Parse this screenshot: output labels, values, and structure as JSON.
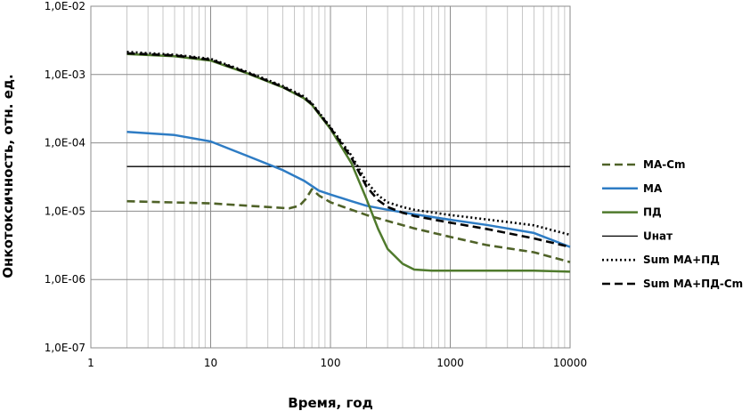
{
  "chart_data": {
    "type": "line",
    "title": "",
    "xlabel": "Время, год",
    "ylabel": "Онкотоксичность, отн. ед.",
    "xscale": "log",
    "yscale": "log",
    "xlim": [
      1,
      10000
    ],
    "ylim": [
      1e-07,
      0.01
    ],
    "x_tick_labels": [
      "1",
      "10",
      "100",
      "1000",
      "10000"
    ],
    "y_tick_labels": [
      "1,0E-07",
      "1,0E-06",
      "1,0E-05",
      "1,0E-04",
      "1,0E-03",
      "1,0E-02"
    ],
    "grid": true,
    "legend_position": "right",
    "series": [
      {
        "name": "MA-Cm",
        "color": "#4f6228",
        "style": "dashed",
        "x": [
          2,
          10,
          30,
          45,
          55,
          62,
          70,
          80,
          100,
          150,
          200,
          300,
          500,
          1000,
          2000,
          5000,
          10000
        ],
        "y": [
          1.4e-05,
          1.3e-05,
          1.15e-05,
          1.1e-05,
          1.2e-05,
          1.5e-05,
          2.1e-05,
          1.7e-05,
          1.35e-05,
          1.05e-05,
          8.8e-06,
          7.2e-06,
          5.6e-06,
          4.2e-06,
          3.2e-06,
          2.5e-06,
          1.8e-06
        ]
      },
      {
        "name": "MA",
        "color": "#2e7cc4",
        "style": "solid",
        "x": [
          2,
          5,
          10,
          20,
          40,
          60,
          80,
          100,
          150,
          200,
          300,
          500,
          1000,
          2000,
          5000,
          10000
        ],
        "y": [
          0.000145,
          0.00013,
          0.000105,
          6.5e-05,
          4e-05,
          2.8e-05,
          2e-05,
          1.75e-05,
          1.4e-05,
          1.2e-05,
          1.05e-05,
          9e-06,
          7.5e-06,
          6.3e-06,
          4.8e-06,
          3e-06
        ]
      },
      {
        "name": "ПД",
        "color": "#4f7a2c",
        "style": "solid",
        "x": [
          2,
          5,
          10,
          20,
          40,
          60,
          70,
          100,
          150,
          200,
          250,
          300,
          400,
          500,
          700,
          1000,
          2000,
          5000,
          10000
        ],
        "y": [
          0.002,
          0.00185,
          0.0016,
          0.00105,
          0.00065,
          0.00045,
          0.00036,
          0.00016,
          5e-05,
          1.5e-05,
          5.5e-06,
          2.8e-06,
          1.7e-06,
          1.4e-06,
          1.35e-06,
          1.35e-06,
          1.35e-06,
          1.35e-06,
          1.3e-06
        ]
      },
      {
        "name": "Uнат",
        "color": "#000000",
        "style": "solid",
        "x": [
          2,
          10000
        ],
        "y": [
          4.5e-05,
          4.5e-05
        ]
      },
      {
        "name": "Sum MA+ПД",
        "color": "#000000",
        "style": "dotted",
        "x": [
          2,
          5,
          10,
          20,
          40,
          60,
          70,
          100,
          150,
          200,
          250,
          300,
          400,
          500,
          1000,
          2000,
          5000,
          10000
        ],
        "y": [
          0.00215,
          0.00195,
          0.0017,
          0.0011,
          0.00068,
          0.00048,
          0.00038,
          0.00017,
          6.5e-05,
          2.7e-05,
          1.7e-05,
          1.35e-05,
          1.15e-05,
          1.05e-05,
          8.8e-06,
          7.6e-06,
          6.2e-06,
          4.5e-06
        ]
      },
      {
        "name": "Sum MA+ПД-Cm",
        "color": "#000000",
        "style": "dashed",
        "x": [
          2,
          5,
          10,
          20,
          40,
          60,
          70,
          100,
          150,
          200,
          250,
          300,
          400,
          500,
          1000,
          2000,
          5000,
          10000
        ],
        "y": [
          0.00205,
          0.0019,
          0.00165,
          0.00107,
          0.00066,
          0.00046,
          0.00037,
          0.000165,
          6e-05,
          2.3e-05,
          1.45e-05,
          1.15e-05,
          9.5e-06,
          8.5e-06,
          6.8e-06,
          5.5e-06,
          4e-06,
          3e-06
        ]
      }
    ]
  }
}
